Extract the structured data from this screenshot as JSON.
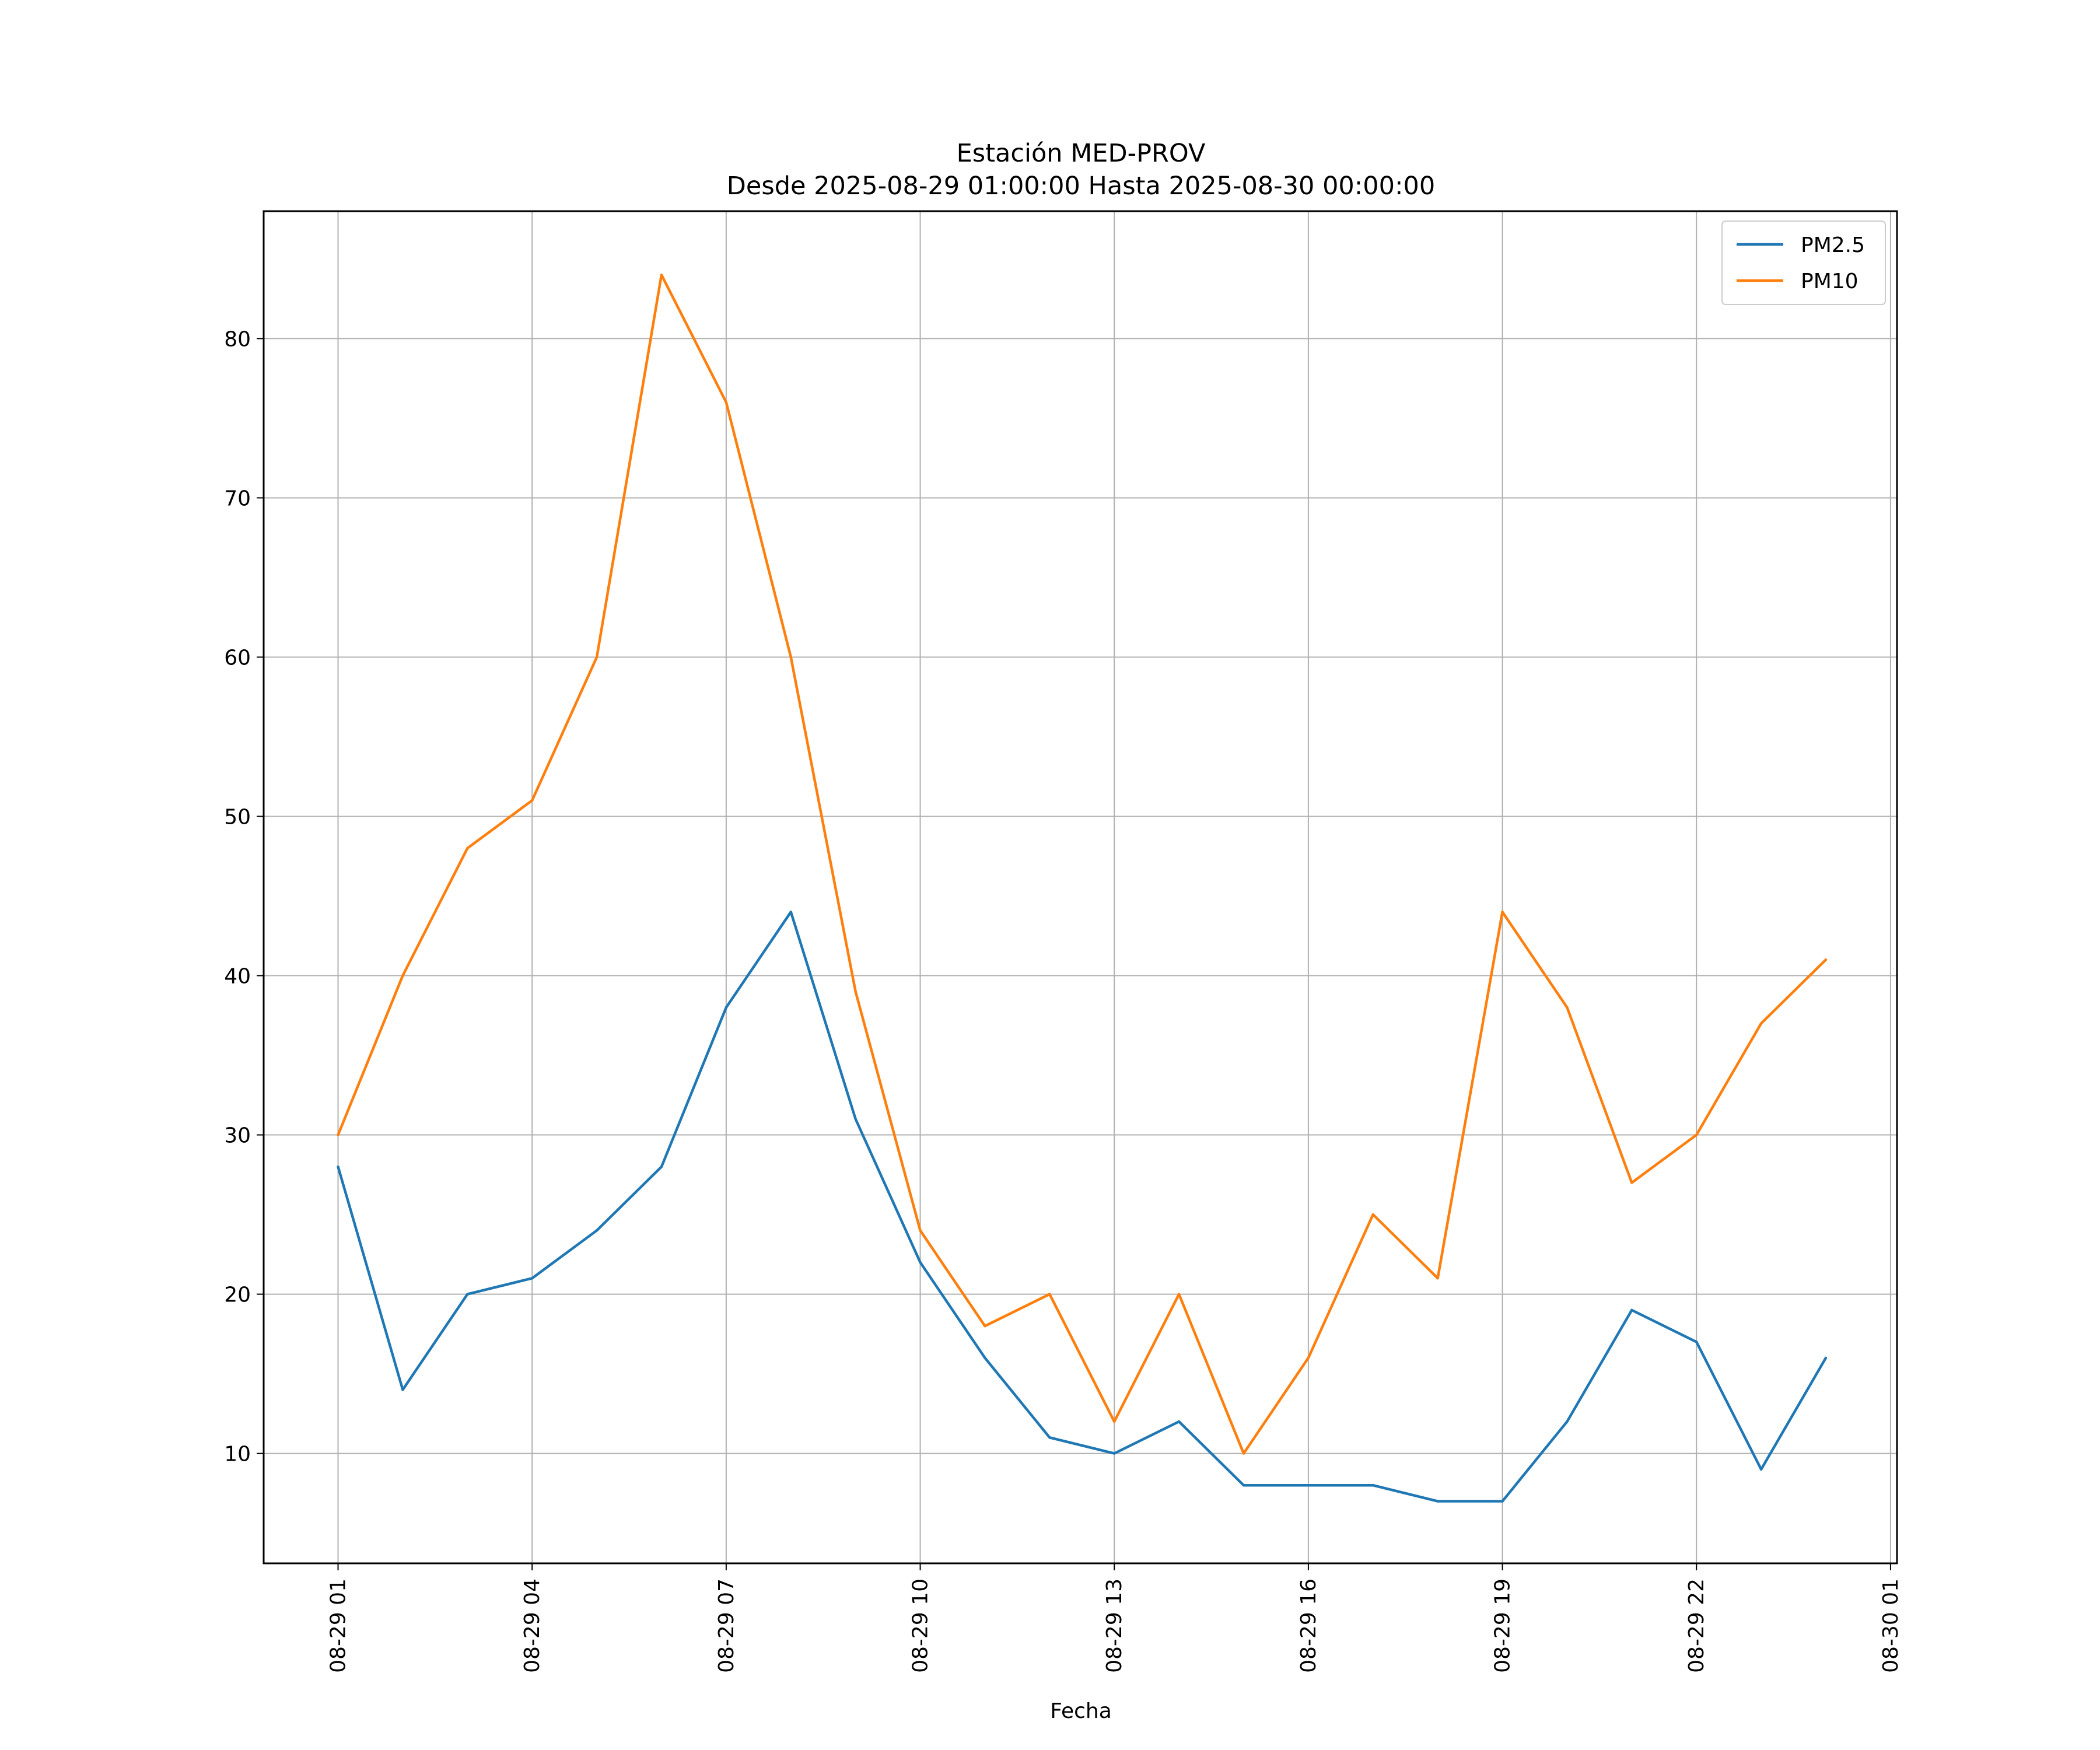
{
  "chart_data": {
    "type": "line",
    "title": "Estación MED-PROV",
    "subtitle": "Desde 2025-08-29 01:00:00 Hasta 2025-08-30 00:00:00",
    "xlabel": "Fecha",
    "ylabel": "",
    "grid": true,
    "legend_position": "top-right",
    "x_hours": [
      1,
      2,
      3,
      4,
      5,
      6,
      7,
      8,
      9,
      10,
      11,
      12,
      13,
      14,
      15,
      16,
      17,
      18,
      19,
      20,
      21,
      22,
      23,
      24
    ],
    "xlim_hours": [
      -0.15,
      25.1
    ],
    "ylim": [
      3.1,
      88
    ],
    "x_ticks": [
      {
        "hour": 1,
        "label": "08-29 01"
      },
      {
        "hour": 4,
        "label": "08-29 04"
      },
      {
        "hour": 7,
        "label": "08-29 07"
      },
      {
        "hour": 10,
        "label": "08-29 10"
      },
      {
        "hour": 13,
        "label": "08-29 13"
      },
      {
        "hour": 16,
        "label": "08-29 16"
      },
      {
        "hour": 19,
        "label": "08-29 19"
      },
      {
        "hour": 22,
        "label": "08-29 22"
      },
      {
        "hour": 25,
        "label": "08-30 01"
      }
    ],
    "y_ticks": [
      10,
      20,
      30,
      40,
      50,
      60,
      70,
      80
    ],
    "series": [
      {
        "name": "PM2.5",
        "color": "#1f77b4",
        "values": [
          28,
          14,
          20,
          21,
          24,
          28,
          38,
          44,
          31,
          22,
          16,
          11,
          10,
          12,
          8,
          8,
          8,
          7,
          7,
          12,
          19,
          17,
          9,
          16
        ]
      },
      {
        "name": "PM10",
        "color": "#ff7f0e",
        "values": [
          30,
          40,
          48,
          51,
          60,
          84,
          76,
          60,
          39,
          24,
          18,
          20,
          12,
          20,
          10,
          16,
          25,
          21,
          44,
          38,
          27,
          30,
          37,
          41
        ]
      }
    ]
  }
}
